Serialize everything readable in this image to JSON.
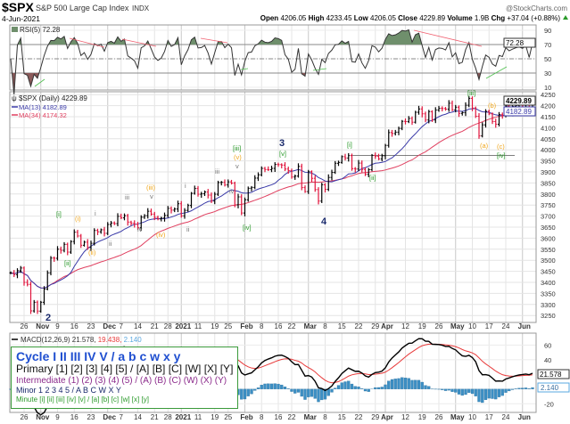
{
  "header": {
    "symbol": "$SPX",
    "name": "S&P 500 Large Cap Index",
    "exchange": "INDX",
    "source": "@StockCharts.com",
    "date": "4-Jun-2021",
    "open_label": "Open",
    "open": "4206.05",
    "high_label": "High",
    "high": "4233.45",
    "low_label": "Low",
    "low": "4206.05",
    "close_label": "Close",
    "close": "4229.89",
    "volume_label": "Volume",
    "volume": "1.9B",
    "chg_label": "Chg",
    "chg": "+37.04 (+0.88%)",
    "chg_icon": "triangle-up-icon"
  },
  "rsi": {
    "label": "RSI(5) 72.28",
    "value_box": "72.28",
    "ticks": [
      "90",
      "70",
      "50",
      "30",
      "10"
    ],
    "tick_values": [
      90,
      70,
      50,
      30,
      10
    ],
    "levels": [
      70,
      50,
      30
    ],
    "ylim": [
      0,
      100
    ],
    "overbought_fill": "#6f8f6c",
    "oversold_fill": "#8a5a5a"
  },
  "price": {
    "label": "$SPX (Daily) 4229.89",
    "ma13_label": "MA(13) 4182.89",
    "ma34_label": "MA(34) 4174.32",
    "last_box": "4229.89",
    "ma13_box": "4182.89",
    "ticks": [
      "4250",
      "4200",
      "4150",
      "4100",
      "4050",
      "4000",
      "3950",
      "3900",
      "3850",
      "3800",
      "3750",
      "3700",
      "3650",
      "3600",
      "3550",
      "3500",
      "3450",
      "3400",
      "3350",
      "3300",
      "3250"
    ],
    "colors": {
      "up": "#000000",
      "down": "#e0143c",
      "ma13": "#3a3aa8",
      "ma34": "#e04060"
    }
  },
  "macd": {
    "label_prefix": "MACD(12,26,9) 21.578, ",
    "signal_val": "19.438, ",
    "hist_val": "2.140",
    "macd_box": "21.578",
    "hist_box": "2.140",
    "ticks": [
      "60",
      "40",
      "-20"
    ],
    "tick_values": [
      60,
      40,
      -20
    ],
    "colors": {
      "macd": "#000000",
      "signal": "#e83a3a",
      "hist": "#3c8fc4"
    }
  },
  "date_ticks": [
    {
      "label": "26",
      "at": 4,
      "bold": false
    },
    {
      "label": "Nov",
      "at": 9,
      "bold": true
    },
    {
      "label": "9",
      "at": 14,
      "bold": false
    },
    {
      "label": "16",
      "at": 19,
      "bold": false
    },
    {
      "label": "23",
      "at": 24,
      "bold": false
    },
    {
      "label": "Dec",
      "at": 29,
      "bold": true
    },
    {
      "label": "7",
      "at": 33,
      "bold": false
    },
    {
      "label": "14",
      "at": 38,
      "bold": false
    },
    {
      "label": "21",
      "at": 43,
      "bold": false
    },
    {
      "label": "28",
      "at": 47,
      "bold": false
    },
    {
      "label": "2021",
      "at": 51,
      "bold": true
    },
    {
      "label": "11",
      "at": 56,
      "bold": false
    },
    {
      "label": "19",
      "at": 61,
      "bold": false
    },
    {
      "label": "25",
      "at": 65,
      "bold": false
    },
    {
      "label": "Feb",
      "at": 70,
      "bold": true
    },
    {
      "label": "8",
      "at": 75,
      "bold": false
    },
    {
      "label": "16",
      "at": 80,
      "bold": false
    },
    {
      "label": "22",
      "at": 84,
      "bold": false
    },
    {
      "label": "Mar",
      "at": 89,
      "bold": true
    },
    {
      "label": "8",
      "at": 94,
      "bold": false
    },
    {
      "label": "15",
      "at": 99,
      "bold": false
    },
    {
      "label": "22",
      "at": 104,
      "bold": false
    },
    {
      "label": "29",
      "at": 109,
      "bold": false
    },
    {
      "label": "Apr",
      "at": 112,
      "bold": true
    },
    {
      "label": "12",
      "at": 118,
      "bold": false
    },
    {
      "label": "19",
      "at": 123,
      "bold": false
    },
    {
      "label": "26",
      "at": 128,
      "bold": false
    },
    {
      "label": "May",
      "at": 133,
      "bold": true
    },
    {
      "label": "10",
      "at": 138,
      "bold": false
    },
    {
      "label": "17",
      "at": 143,
      "bold": false
    },
    {
      "label": "24",
      "at": 148,
      "bold": false
    },
    {
      "label": "Jun",
      "at": 153,
      "bold": true
    }
  ],
  "wave_labels": [
    {
      "text": "[i]",
      "color": "#2a9a2a"
    },
    {
      "text": "[ii]",
      "color": "#2a9a2a"
    },
    {
      "text": "(i)",
      "color": "#f0a820"
    },
    {
      "text": "(ii)",
      "color": "#f0a820"
    },
    {
      "text": "i",
      "color": "#777777"
    },
    {
      "text": "ii",
      "color": "#777777"
    },
    {
      "text": "iii",
      "color": "#777777"
    },
    {
      "text": "iv",
      "color": "#777777"
    },
    {
      "text": "(iii)",
      "color": "#f0a820"
    },
    {
      "text": "v",
      "color": "#777777"
    },
    {
      "text": "(iv)",
      "color": "#f0a820"
    },
    {
      "text": "i",
      "color": "#777777"
    },
    {
      "text": "ii",
      "color": "#777777"
    },
    {
      "text": "iii",
      "color": "#777777"
    },
    {
      "text": "iv",
      "color": "#777777"
    },
    {
      "text": "[iii]",
      "color": "#2a9a2a"
    },
    {
      "text": "(v)",
      "color": "#f0a820"
    },
    {
      "text": "v",
      "color": "#777777"
    },
    {
      "text": "[iv]",
      "color": "#2a9a2a"
    },
    {
      "text": "3",
      "color": "#1a2a6c"
    },
    {
      "text": "[v]",
      "color": "#2a9a2a"
    },
    {
      "text": "4",
      "color": "#1a2a6c"
    },
    {
      "text": "[i]",
      "color": "#2a9a2a"
    },
    {
      "text": "[ii]",
      "color": "#2a9a2a"
    },
    {
      "text": "[iii]",
      "color": "#2a9a2a"
    },
    {
      "text": "(b)",
      "color": "#f0a820"
    },
    {
      "text": "(a)",
      "color": "#f0a820"
    },
    {
      "text": "(c)",
      "color": "#f0a820"
    },
    {
      "text": "[iv]",
      "color": "#2a9a2a"
    },
    {
      "text": "2",
      "color": "#1a2a6c"
    }
  ],
  "legend": {
    "cycle": "Cycle I II III IV V / a b c w x y",
    "primary": "Primary [1] [2] [3] [4] [5] / [A] [B] [C] [W] [X] [Y]",
    "intermediate": "Intermediate (1) (2) (3) (4) (5) / (A) (B) (C) (W) (X) (Y)",
    "minor": "Minor 1 2 3 4 5 / A B C W X Y",
    "minute": "Minute [i] [ii] [iii] [iv] [v] / [a] [b] [c] [w] [x] [y]"
  },
  "chart_data": {
    "type": "ohlc",
    "title": "$SPX S&P 500 Large Cap Index INDX",
    "ylim": [
      3225,
      4275
    ],
    "grid": true,
    "closes": [
      3443,
      3435,
      3453,
      3465,
      3400,
      3391,
      3271,
      3310,
      3270,
      3310,
      3370,
      3443,
      3510,
      3509,
      3550,
      3545,
      3572,
      3537,
      3585,
      3627,
      3610,
      3568,
      3582,
      3558,
      3577,
      3635,
      3629,
      3638,
      3622,
      3662,
      3669,
      3666,
      3699,
      3692,
      3702,
      3673,
      3668,
      3663,
      3647,
      3695,
      3702,
      3722,
      3709,
      3694,
      3687,
      3691,
      3703,
      3735,
      3727,
      3732,
      3756,
      3701,
      3726,
      3748,
      3803,
      3825,
      3799,
      3801,
      3809,
      3795,
      3768,
      3799,
      3852,
      3853,
      3841,
      3855,
      3849,
      3751,
      3787,
      3714,
      3774,
      3826,
      3830,
      3872,
      3887,
      3916,
      3911,
      3910,
      3916,
      3934,
      3933,
      3931,
      3913,
      3906,
      3877,
      3881,
      3925,
      3829,
      3811,
      3901,
      3871,
      3820,
      3768,
      3842,
      3821,
      3875,
      3898,
      3939,
      3943,
      3969,
      3963,
      3974,
      3915,
      3913,
      3940,
      3911,
      3889,
      3910,
      3975,
      3971,
      3959,
      3973,
      4020,
      4078,
      4074,
      4080,
      4097,
      4129,
      4128,
      4142,
      4125,
      4170,
      4185,
      4163,
      4135,
      4173,
      4135,
      4180,
      4188,
      4187,
      4184,
      4211,
      4181,
      4193,
      4165,
      4168,
      4202,
      4233,
      4189,
      4152,
      4063,
      4113,
      4174,
      4163,
      4128,
      4116,
      4160,
      4156,
      4198,
      4189,
      4196,
      4201,
      4204,
      4202,
      4208,
      4193,
      4230
    ],
    "support_line": 3975
  }
}
